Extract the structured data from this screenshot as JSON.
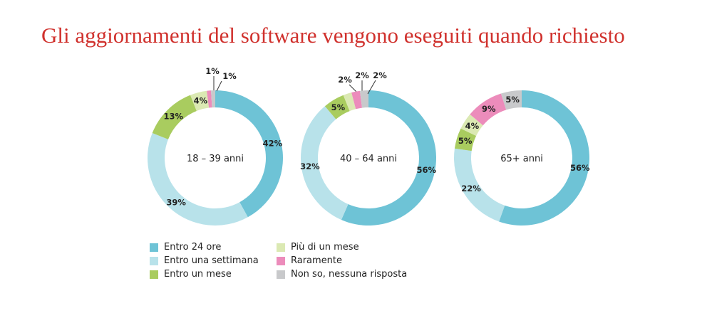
{
  "chart_data": {
    "type": "donut",
    "title": "Gli aggiornamenti del software vengono eseguiti quando richiesto",
    "categories": [
      "Entro 24 ore",
      "Entro una settimana",
      "Entro un mese",
      "Più di un mese",
      "Raramente",
      "Non so, nessuna risposta"
    ],
    "colors": [
      "#6ec3d6",
      "#b8e2ea",
      "#a9cc5f",
      "#dbe9b3",
      "#ec8cbb",
      "#c8c9cb"
    ],
    "charts": [
      {
        "label": "18 – 39 anni",
        "values": [
          42,
          39,
          13,
          4,
          1,
          1
        ]
      },
      {
        "label": "40 – 64 anni",
        "values": [
          56,
          32,
          5,
          2,
          2,
          2
        ]
      },
      {
        "label": "65+ anni",
        "values": [
          56,
          22,
          5,
          4,
          9,
          5
        ]
      }
    ],
    "legend_position": "bottom-left"
  }
}
